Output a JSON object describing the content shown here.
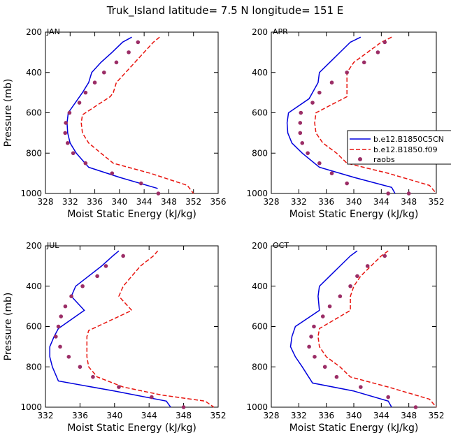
{
  "figure_title": "Truk_Island  latitude= 7.5 N longitude= 151 E",
  "colors": {
    "model_a": "#0000dd",
    "model_b": "#e8150f",
    "raobs": "#9b2d66"
  },
  "legend": {
    "entries": [
      "b.e12.B1850C5CN",
      "b.e12.B1850.f09",
      "raobs"
    ]
  },
  "chart_data": [
    {
      "type": "line",
      "panel": "JAN",
      "title": "JAN",
      "xlabel": "Moist Static Energy (kJ/kg)",
      "ylabel": "Pressure (mb)",
      "xlim": [
        328,
        356
      ],
      "xticks": [
        328,
        332,
        336,
        340,
        344,
        348,
        352,
        356
      ],
      "ylim": [
        200,
        1000
      ],
      "yticks": [
        200,
        400,
        600,
        800,
        1000
      ],
      "y_inverted": true,
      "series": [
        {
          "name": "b.e12.B1850C5CN",
          "style": "solid",
          "x": [
            342.0,
            340.5,
            338.8,
            337.0,
            335.5,
            335.0,
            334.0,
            331.7,
            331.5,
            331.6,
            332.0,
            333.0,
            335.0,
            340.0,
            346.2
          ],
          "y": [
            225,
            250,
            300,
            350,
            400,
            450,
            500,
            600,
            650,
            700,
            750,
            800,
            870,
            920,
            975
          ]
        },
        {
          "name": "b.e12.B1850.f09",
          "style": "dashed",
          "x": [
            346.5,
            345.5,
            344.0,
            342.5,
            341.0,
            339.5,
            339.0,
            338.5,
            334.0,
            333.8,
            334.0,
            335.0,
            337.0,
            339.0,
            345.0,
            351.0,
            352.0
          ],
          "y": [
            225,
            250,
            300,
            350,
            400,
            450,
            500,
            520,
            610,
            650,
            700,
            750,
            800,
            850,
            900,
            960,
            1000
          ]
        },
        {
          "name": "raobs",
          "style": "markers",
          "x": [
            343.0,
            341.5,
            339.5,
            337.5,
            336.0,
            334.5,
            333.5,
            331.9,
            331.3,
            331.2,
            331.6,
            332.5,
            334.5,
            338.8,
            343.5,
            346.3
          ],
          "y": [
            250,
            300,
            350,
            400,
            450,
            500,
            550,
            600,
            650,
            700,
            750,
            800,
            850,
            900,
            950,
            1000
          ]
        }
      ]
    },
    {
      "type": "line",
      "panel": "APR",
      "title": "APR",
      "xlabel": "Moist Static Energy (kJ/kg)",
      "ylabel": "",
      "xlim": [
        328,
        352
      ],
      "xticks": [
        328,
        332,
        336,
        340,
        344,
        348,
        352
      ],
      "ylim": [
        200,
        1000
      ],
      "yticks": [
        200,
        400,
        600,
        800,
        1000
      ],
      "y_inverted": true,
      "series": [
        {
          "name": "b.e12.B1850C5CN",
          "style": "solid",
          "x": [
            341.0,
            339.5,
            338.0,
            336.5,
            335.0,
            334.8,
            333.5,
            330.5,
            330.3,
            330.4,
            331.0,
            332.5,
            335.0,
            340.0,
            345.5,
            346.0
          ],
          "y": [
            225,
            250,
            300,
            350,
            400,
            450,
            530,
            600,
            650,
            700,
            750,
            800,
            870,
            920,
            970,
            1000
          ]
        },
        {
          "name": "b.e12.B1850.f09",
          "style": "dashed",
          "x": [
            345.5,
            344.0,
            342.0,
            340.0,
            339.0,
            339.0,
            339.0,
            334.5,
            334.3,
            334.5,
            335.5,
            337.5,
            339.0,
            345.0,
            351.0,
            352.0
          ],
          "y": [
            225,
            250,
            300,
            350,
            400,
            450,
            520,
            600,
            650,
            700,
            750,
            800,
            850,
            900,
            960,
            1000
          ]
        },
        {
          "name": "raobs",
          "style": "markers",
          "x": [
            344.5,
            343.5,
            341.5,
            339.0,
            336.8,
            335.0,
            334.0,
            332.3,
            332.2,
            332.2,
            332.5,
            333.3,
            335.0,
            336.8,
            339.0,
            345.0,
            348.0
          ],
          "y": [
            250,
            300,
            350,
            400,
            450,
            500,
            550,
            600,
            650,
            700,
            750,
            800,
            850,
            900,
            950,
            1000,
            1000
          ]
        }
      ]
    },
    {
      "type": "line",
      "panel": "JUL",
      "title": "JUL",
      "xlabel": "Moist Static Energy (kJ/kg)",
      "ylabel": "Pressure (mb)",
      "xlim": [
        332,
        352
      ],
      "xticks": [
        332,
        336,
        340,
        344,
        348,
        352
      ],
      "ylim": [
        200,
        1000
      ],
      "yticks": [
        200,
        400,
        600,
        800,
        1000
      ],
      "y_inverted": true,
      "series": [
        {
          "name": "b.e12.B1850C5CN",
          "style": "solid",
          "x": [
            340.5,
            339.8,
            338.5,
            337.0,
            335.5,
            335.0,
            336.5,
            333.5,
            333.0,
            332.5,
            332.5,
            332.8,
            333.5,
            340.0,
            346.0,
            346.5
          ],
          "y": [
            225,
            250,
            300,
            350,
            400,
            450,
            520,
            610,
            650,
            700,
            750,
            800,
            870,
            920,
            970,
            1000
          ]
        },
        {
          "name": "b.e12.B1850.f09",
          "style": "dashed",
          "x": [
            345.0,
            344.5,
            343.0,
            342.0,
            341.0,
            340.5,
            342.0,
            337.0,
            336.8,
            336.8,
            336.8,
            337.0,
            338.0,
            341.0,
            345.5,
            350.5,
            351.5
          ],
          "y": [
            225,
            250,
            300,
            350,
            400,
            450,
            520,
            620,
            650,
            700,
            750,
            800,
            850,
            900,
            940,
            970,
            1000
          ]
        },
        {
          "name": "raobs",
          "style": "markers",
          "x": [
            341.0,
            339.0,
            338.0,
            336.3,
            335.0,
            334.3,
            333.8,
            333.5,
            333.2,
            333.7,
            334.7,
            336.0,
            337.5,
            340.5,
            344.3,
            348.0
          ],
          "y": [
            250,
            300,
            350,
            400,
            450,
            500,
            550,
            600,
            650,
            700,
            750,
            800,
            850,
            900,
            950,
            1000
          ]
        }
      ]
    },
    {
      "type": "line",
      "panel": "OCT",
      "title": "OCT",
      "xlabel": "Moist Static Energy (kJ/kg)",
      "ylabel": "",
      "xlim": [
        328,
        352
      ],
      "xticks": [
        328,
        332,
        336,
        340,
        344,
        348,
        352
      ],
      "ylim": [
        200,
        1000
      ],
      "yticks": [
        200,
        400,
        600,
        800,
        1000
      ],
      "y_inverted": true,
      "series": [
        {
          "name": "b.e12.B1850C5CN",
          "style": "solid",
          "x": [
            340.5,
            339.5,
            338.0,
            336.5,
            335.0,
            334.8,
            335.0,
            331.5,
            331.0,
            330.8,
            331.5,
            332.5,
            334.0,
            340.0,
            345.0,
            345.5
          ],
          "y": [
            225,
            250,
            300,
            350,
            400,
            450,
            520,
            600,
            650,
            700,
            750,
            800,
            880,
            920,
            970,
            1000
          ]
        },
        {
          "name": "b.e12.B1850.f09",
          "style": "dashed",
          "x": [
            345.0,
            344.0,
            342.5,
            341.0,
            340.0,
            339.5,
            339.5,
            335.0,
            334.8,
            335.0,
            336.0,
            338.0,
            339.5,
            345.0,
            351.0,
            352.0
          ],
          "y": [
            225,
            250,
            300,
            350,
            400,
            450,
            520,
            610,
            650,
            700,
            750,
            800,
            850,
            900,
            960,
            1000
          ]
        },
        {
          "name": "raobs",
          "style": "markers",
          "x": [
            344.5,
            342.0,
            340.5,
            339.5,
            338.0,
            336.5,
            335.5,
            334.2,
            333.8,
            333.5,
            334.3,
            335.8,
            337.5,
            341.0,
            345.0,
            349.0
          ],
          "y": [
            250,
            300,
            350,
            400,
            450,
            500,
            550,
            600,
            650,
            700,
            750,
            800,
            850,
            900,
            950,
            1000
          ]
        }
      ]
    }
  ]
}
